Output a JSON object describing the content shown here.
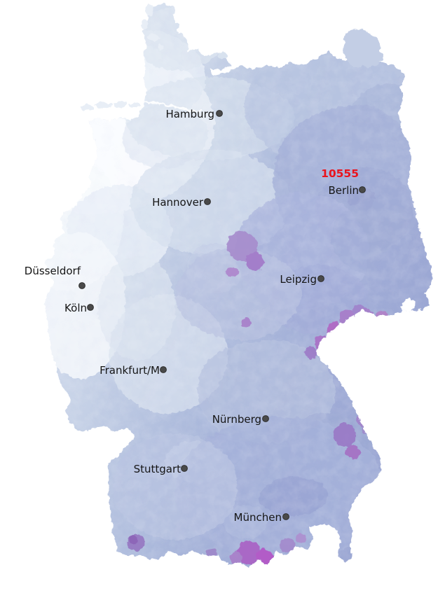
{
  "map": {
    "country": "Germany",
    "kind": "postal-code choropleth",
    "highlight": {
      "code": "10555",
      "color": "#e9141d"
    },
    "marker_color": "#4a4a4a",
    "palette": {
      "lightest": "#fcfdff",
      "light": "#dce5f1",
      "medium": "#b7c3e0",
      "dark": "#9fabd6",
      "purple": "#a67cc8",
      "magenta": "#b455c6"
    },
    "cities": [
      {
        "name": "Hamburg",
        "dot": [
          313,
          162
        ],
        "label": [
          306,
          168
        ]
      },
      {
        "name": "Hannover",
        "dot": [
          296,
          288
        ],
        "label": [
          290,
          294
        ]
      },
      {
        "name": "Berlin",
        "dot": [
          517,
          271
        ],
        "label": [
          512,
          277
        ],
        "highlight_label": [
          512,
          253
        ]
      },
      {
        "name": "Düsseldorf",
        "dot": [
          117,
          408
        ],
        "label": [
          115,
          392
        ]
      },
      {
        "name": "Köln",
        "dot": [
          129,
          439
        ],
        "label": [
          124,
          445
        ]
      },
      {
        "name": "Leipzig",
        "dot": [
          458,
          398
        ],
        "label": [
          452,
          404
        ]
      },
      {
        "name": "Frankfurt/M",
        "dot": [
          233,
          528
        ],
        "label": [
          228,
          534
        ]
      },
      {
        "name": "Nürnberg",
        "dot": [
          379,
          598
        ],
        "label": [
          373,
          604
        ]
      },
      {
        "name": "Stuttgart",
        "dot": [
          263,
          669
        ],
        "label": [
          258,
          675
        ]
      },
      {
        "name": "München",
        "dot": [
          408,
          738
        ],
        "label": [
          402,
          744
        ]
      }
    ]
  }
}
